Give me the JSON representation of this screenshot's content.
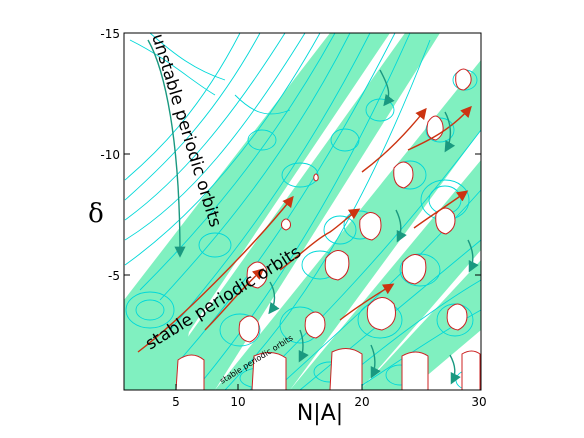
{
  "figure": {
    "x_axis": {
      "label": "N|A|",
      "tick_labels": [
        "5",
        "10",
        "20",
        "30"
      ]
    },
    "y_axis": {
      "label": "δ",
      "tick_labels": [
        "-15",
        "-10",
        "-5"
      ]
    },
    "annotations": {
      "unstable": "unstable periodic orbits",
      "stable": "stable periodic orbits",
      "stable_small": "stable periodic orbits"
    },
    "colors": {
      "band_fill": "#80f0c0",
      "contour": "#00d8d8",
      "orbit_closed": "#cc2222",
      "arrow_red": "#cc3311",
      "arrow_teal": "#1a9980"
    }
  }
}
